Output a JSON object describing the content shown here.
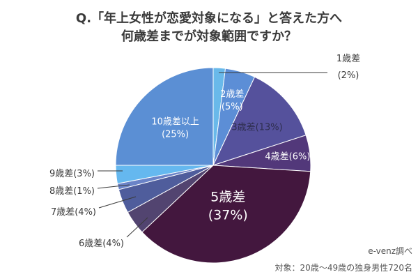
{
  "chart_data": {
    "type": "pie",
    "title_line1": "Q.「年上女性が恋愛対象になる」と答えた方へ",
    "title_line2": "何歳差までが対象範囲ですか？",
    "slices": [
      {
        "label": "1歳差",
        "value": 2,
        "display": "(2%)",
        "color": "#69B9EA"
      },
      {
        "label": "2歳差",
        "value": 5,
        "display": "(5%)",
        "color": "#5C8ED6"
      },
      {
        "label": "3歳差",
        "value": 13,
        "display": "(13%)",
        "color": "#55519C"
      },
      {
        "label": "4歳差",
        "value": 6,
        "display": "(6%)",
        "color": "#52387A"
      },
      {
        "label": "5歳差",
        "value": 37,
        "display": "(37%)",
        "color": "#43173E"
      },
      {
        "label": "6歳差",
        "value": 4,
        "display": "(4%)",
        "color": "#524470"
      },
      {
        "label": "7歳差",
        "value": 4,
        "display": "(4%)",
        "color": "#4F5D9C"
      },
      {
        "label": "8歳差",
        "value": 1,
        "display": "(1%)",
        "color": "#6A83C7"
      },
      {
        "label": "9歳差",
        "value": 3,
        "display": "(3%)",
        "color": "#65B8EF"
      },
      {
        "label": "10歳差以上",
        "value": 25,
        "display": "(25%)",
        "color": "#5B8FD4"
      }
    ]
  },
  "footer": {
    "source": "e-venz調べ",
    "subject": "対象：20歳〜49歳の独身男性720名"
  }
}
